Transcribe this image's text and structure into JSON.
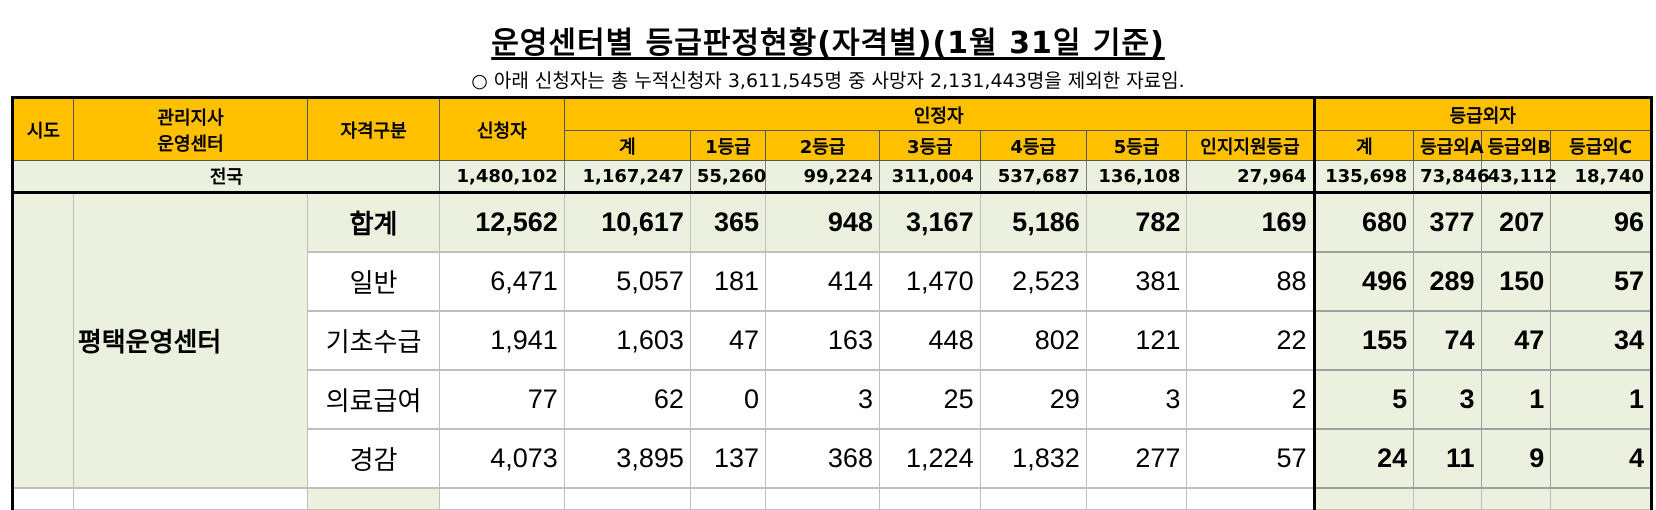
{
  "title": "운영센터별 등급판정현황(자격별)(1월 31일 기준)",
  "note": "○ 아래 신청자는 총 누적신청자 3,611,545명 중 사망자 2,131,443명을 제외한 자료임.",
  "headers": {
    "sido": "시도",
    "branch_line1": "관리지사",
    "branch_line2": "운영센터",
    "qualification": "자격구분",
    "applicants": "신청자",
    "approved": "인정자",
    "outside": "등급외자",
    "approved_cols": [
      "계",
      "1등급",
      "2등급",
      "3등급",
      "4등급",
      "5등급",
      "인지지원등급"
    ],
    "outside_cols": [
      "계",
      "등급외A",
      "등급외B",
      "등급외C"
    ]
  },
  "national": {
    "label": "전국",
    "values": [
      "1,480,102",
      "1,167,247",
      "55,260",
      "99,224",
      "311,004",
      "537,687",
      "136,108",
      "27,964",
      "135,698",
      "73,846",
      "43,112",
      "18,740"
    ]
  },
  "center": {
    "name": "평택운영센터",
    "rows": [
      {
        "type": "합계",
        "values": [
          "12,562",
          "10,617",
          "365",
          "948",
          "3,167",
          "5,186",
          "782",
          "169",
          "680",
          "377",
          "207",
          "96"
        ]
      },
      {
        "type": "일반",
        "values": [
          "6,471",
          "5,057",
          "181",
          "414",
          "1,470",
          "2,523",
          "381",
          "88",
          "496",
          "289",
          "150",
          "57"
        ]
      },
      {
        "type": "기초수급",
        "values": [
          "1,941",
          "1,603",
          "47",
          "163",
          "448",
          "802",
          "121",
          "22",
          "155",
          "74",
          "47",
          "34"
        ]
      },
      {
        "type": "의료급여",
        "values": [
          "77",
          "62",
          "0",
          "3",
          "25",
          "29",
          "3",
          "2",
          "5",
          "3",
          "1",
          "1"
        ]
      },
      {
        "type": "경감",
        "values": [
          "4,073",
          "3,895",
          "137",
          "368",
          "1,224",
          "1,832",
          "277",
          "57",
          "24",
          "11",
          "9",
          "4"
        ]
      }
    ]
  }
}
